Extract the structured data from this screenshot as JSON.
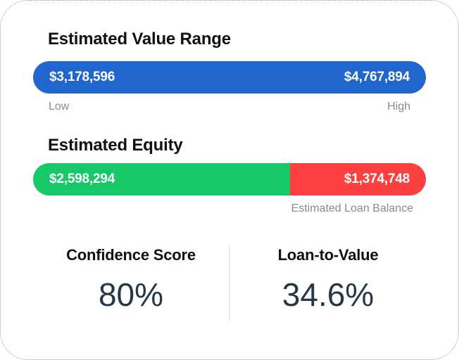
{
  "card": {
    "value_range": {
      "title": "Estimated Value Range",
      "low_value": "$3,178,596",
      "high_value": "$4,767,894",
      "low_label": "Low",
      "high_label": "High",
      "bar_color": "#2166CC"
    },
    "equity": {
      "title": "Estimated Equity",
      "equity_value": "$2,598,294",
      "loan_value": "$1,374,748",
      "loan_label": "Estimated Loan Balance",
      "equity_percent": 65.4,
      "loan_percent": 34.6,
      "equity_color": "#16C868",
      "loan_color": "#FB403F"
    },
    "stats": [
      {
        "label": "Confidence Score",
        "value": "80%"
      },
      {
        "label": "Loan-to-Value",
        "value": "34.6%"
      }
    ],
    "stat_value_color": "#243948"
  }
}
